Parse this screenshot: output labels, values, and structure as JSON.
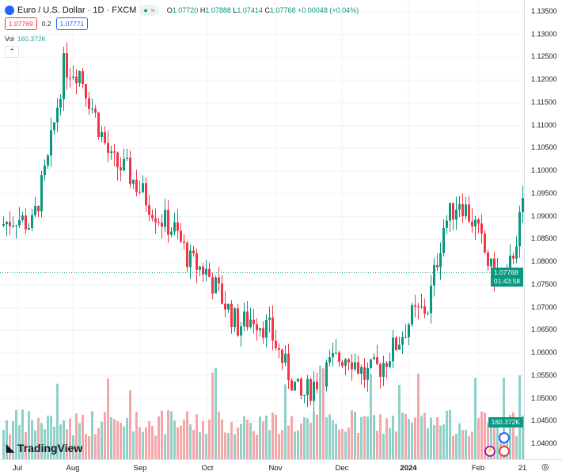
{
  "header": {
    "symbol": "Euro / U.S. Dollar · 1D · FXCM",
    "status_icon": "market-open-dot",
    "o_label": "O",
    "o": "1.07720",
    "h_label": "H",
    "h": "1.07888",
    "l_label": "L",
    "l": "1.07414",
    "c_label": "C",
    "c": "1.07768",
    "change": "+0.00048 (+0.04%)"
  },
  "quote": {
    "sell": "1.07769",
    "spread": "0.2",
    "buy": "1.07771"
  },
  "volume": {
    "label": "Vol",
    "value": "160.372K"
  },
  "price_tag": {
    "price": "1.07768",
    "countdown": "01:43:58"
  },
  "brand": "TradingView",
  "colors": {
    "up": "#089981",
    "down": "#f23645",
    "vol_up": "#8fd1c8",
    "vol_down": "#f5a6a9"
  },
  "chart_data": {
    "type": "candlestick",
    "y_ticks": [
      "1.13500",
      "1.13000",
      "1.12500",
      "1.12000",
      "1.11500",
      "1.11000",
      "1.10500",
      "1.10000",
      "1.09500",
      "1.09000",
      "1.08500",
      "1.08000",
      "1.07500",
      "1.07000",
      "1.06500",
      "1.06000",
      "1.05500",
      "1.05000",
      "1.04500",
      "1.04000"
    ],
    "ylim": [
      1.04,
      1.135
    ],
    "x_ticks": [
      "Jul",
      "Aug",
      "Sep",
      "Oct",
      "Nov",
      "Dec",
      "2024",
      "Feb",
      "21"
    ],
    "weekly_closes": [
      1.09,
      1.088,
      1.102,
      1.123,
      1.122,
      1.112,
      1.102,
      1.1,
      1.095,
      1.09,
      1.087,
      1.08,
      1.078,
      1.072,
      1.066,
      1.068,
      1.065,
      1.057,
      1.05,
      1.054,
      1.058,
      1.06,
      1.055,
      1.057,
      1.062,
      1.068,
      1.07,
      1.088,
      1.094,
      1.088,
      1.078,
      1.076,
      1.092,
      1.099,
      1.104,
      1.11,
      1.094,
      1.096,
      1.09,
      1.088,
      1.085,
      1.087,
      1.078,
      1.076,
      1.07768
    ],
    "last_volume_k": 160.372
  }
}
